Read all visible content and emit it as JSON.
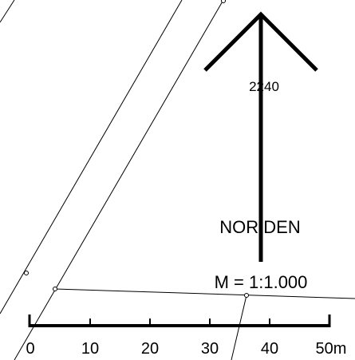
{
  "map": {
    "parcel_number": "2240",
    "north_label": "NOR DEN",
    "scale_label": "M = 1:1.000",
    "scale_bar": {
      "ticks": [
        "0",
        "10",
        "20",
        "30",
        "40",
        "50m"
      ]
    }
  }
}
